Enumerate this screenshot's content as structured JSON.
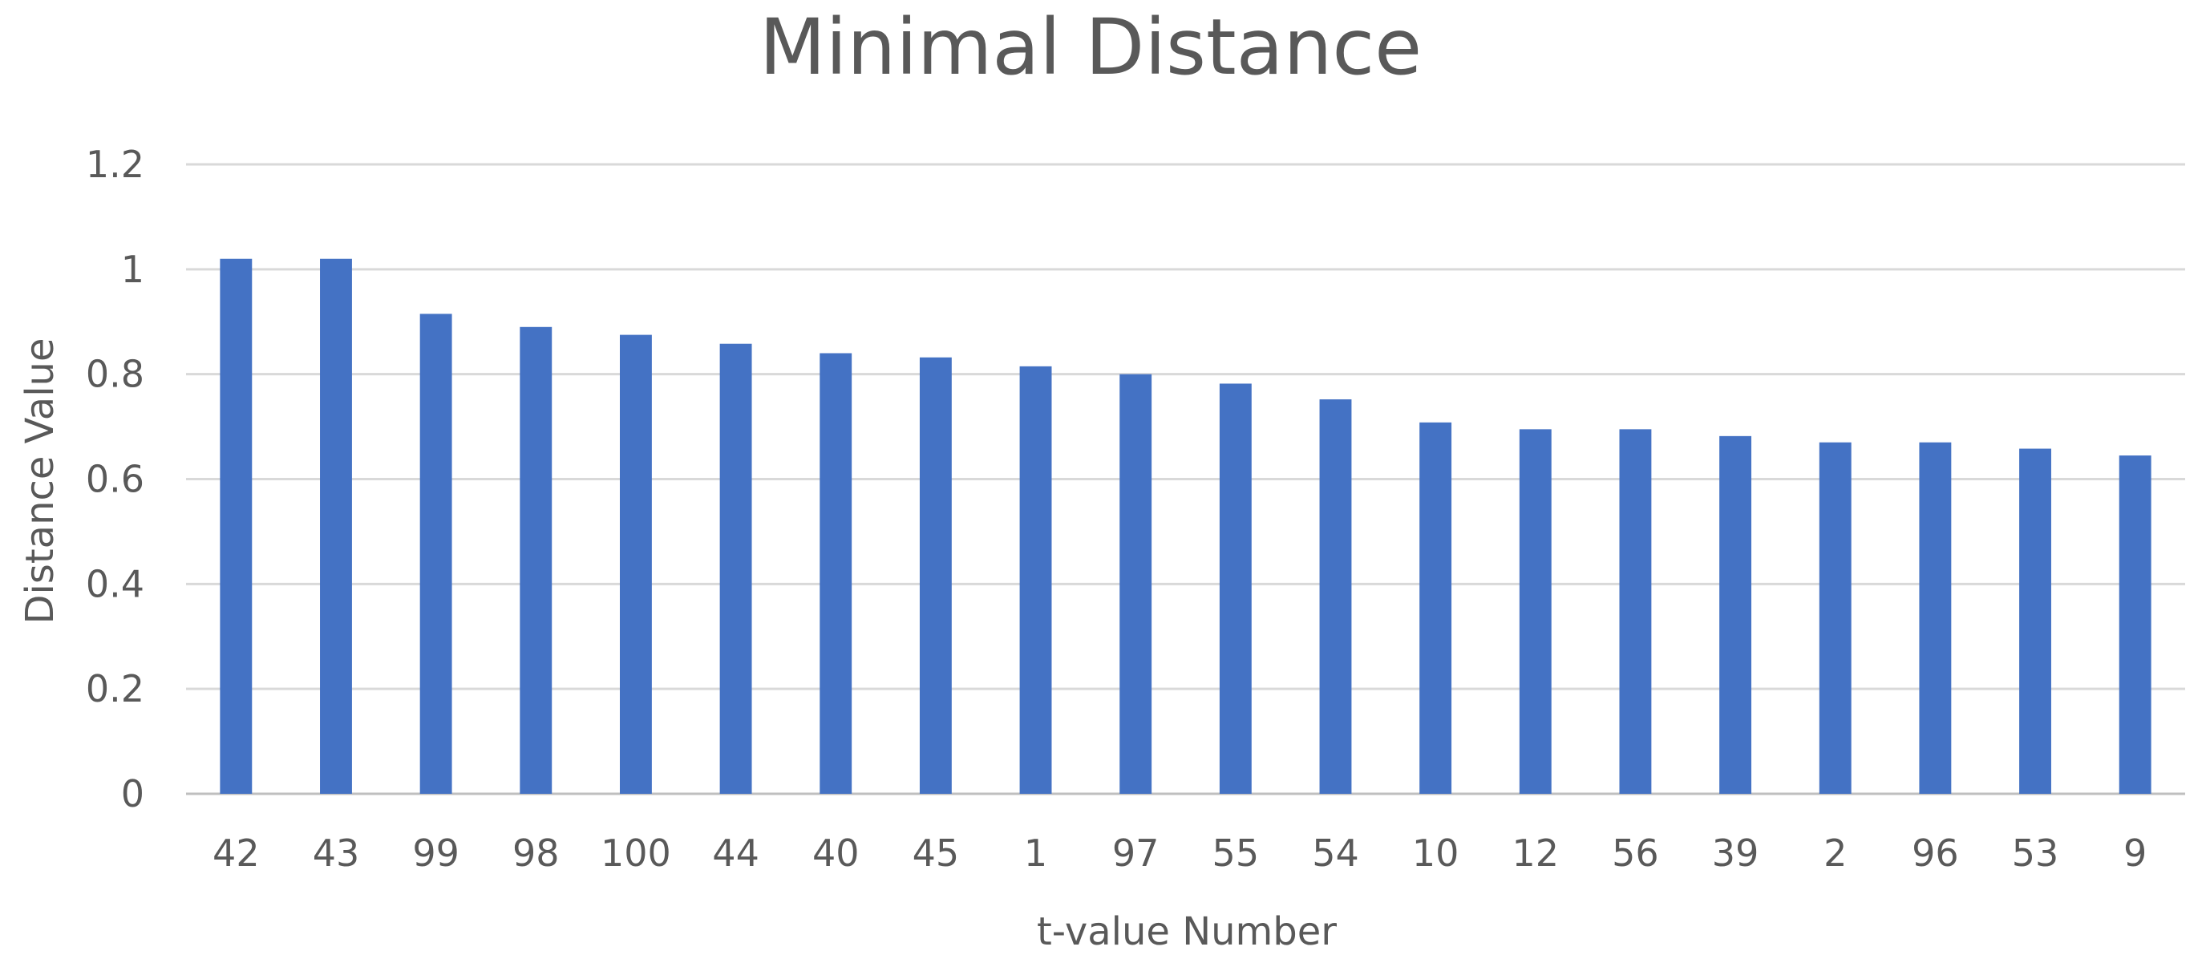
{
  "chart_data": {
    "type": "bar",
    "title": "Minimal Distance",
    "xlabel": "t-value Number",
    "ylabel": "Distance Value",
    "categories": [
      "42",
      "43",
      "99",
      "98",
      "100",
      "44",
      "40",
      "45",
      "1",
      "97",
      "55",
      "54",
      "10",
      "12",
      "56",
      "39",
      "2",
      "96",
      "53",
      "9"
    ],
    "values": [
      1.02,
      1.02,
      0.915,
      0.89,
      0.875,
      0.858,
      0.84,
      0.832,
      0.815,
      0.8,
      0.782,
      0.752,
      0.708,
      0.695,
      0.695,
      0.682,
      0.67,
      0.67,
      0.658,
      0.645
    ],
    "ylim": [
      0,
      1.2
    ],
    "yticks": [
      "0",
      "0.2",
      "0.4",
      "0.6",
      "0.8",
      "1",
      "1.2"
    ],
    "ytick_values": [
      0,
      0.2,
      0.4,
      0.6,
      0.8,
      1,
      1.2
    ],
    "grid": true,
    "legend": "none",
    "colors": {
      "bar": "#4472c4",
      "grid": "#d9d9d9",
      "text": "#595959"
    }
  }
}
